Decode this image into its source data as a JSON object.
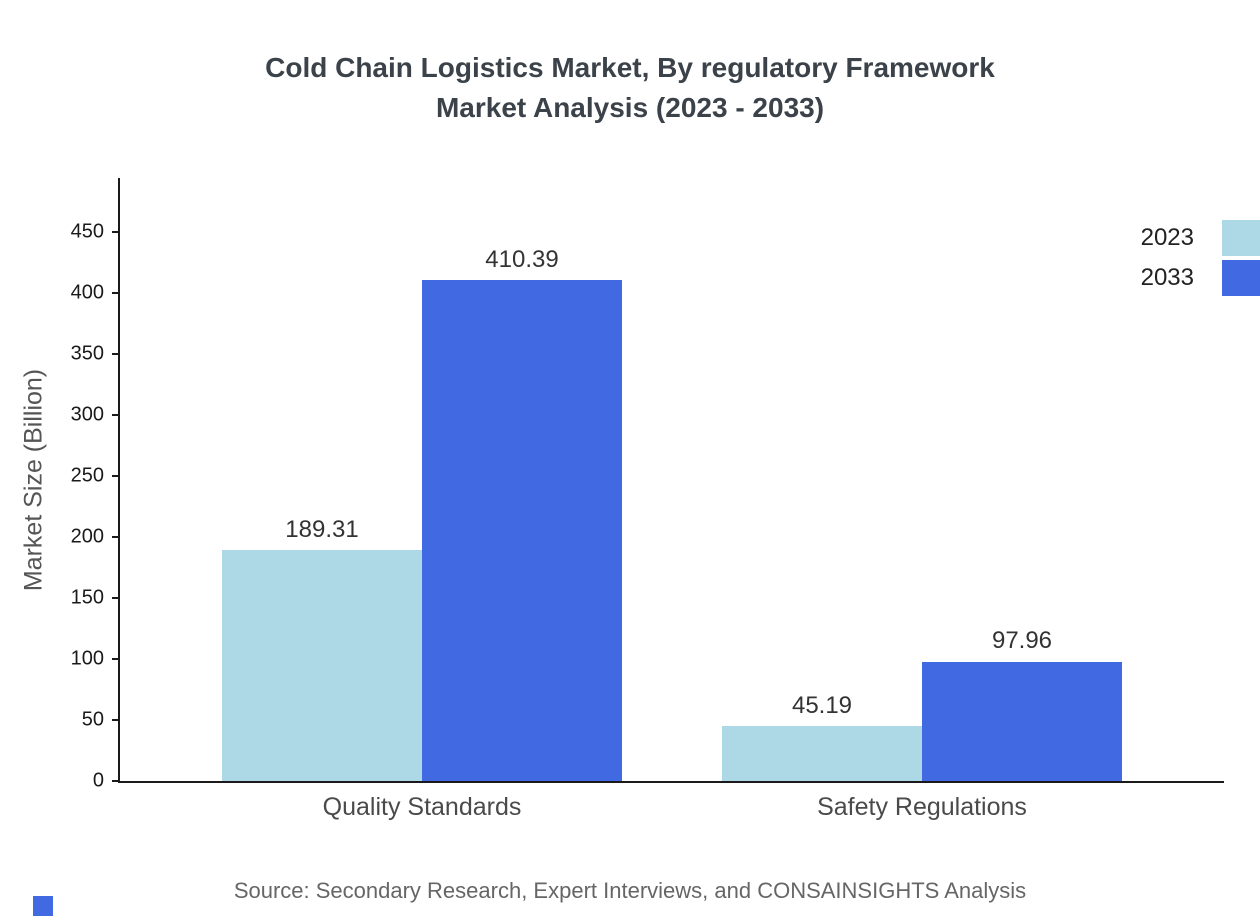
{
  "title": {
    "line1": "Cold Chain Logistics Market, By regulatory Framework",
    "line2": "Market Analysis (2023 - 2033)"
  },
  "source": "Source: Secondary Research, Expert Interviews, and CONSAINSIGHTS Analysis",
  "colors": {
    "series_2023": "#add8e6",
    "series_2033": "#4169e1",
    "title_text": "#3b4249",
    "axis": "#1a1a1a",
    "category_text": "#4a4a4a",
    "source_text": "#666666"
  },
  "chart_data": {
    "type": "bar",
    "title": "Cold Chain Logistics Market, By regulatory Framework Market Analysis (2023 - 2033)",
    "categories": [
      "Quality Standards",
      "Safety Regulations"
    ],
    "series": [
      {
        "name": "2023",
        "color": "#add8e6",
        "values": [
          189.31,
          45.19
        ]
      },
      {
        "name": "2033",
        "color": "#4169e1",
        "values": [
          410.39,
          97.96
        ]
      }
    ],
    "xlabel": "",
    "ylabel": "Market Size (Billion)",
    "ylim": [
      0,
      475
    ],
    "yticks": [
      0,
      50,
      100,
      150,
      200,
      250,
      300,
      350,
      400,
      450
    ],
    "legend_position": "top-right",
    "grid": false
  }
}
